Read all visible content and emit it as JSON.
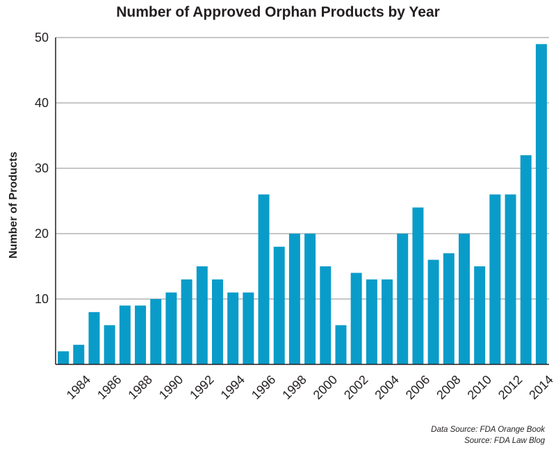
{
  "chart_data": {
    "type": "bar",
    "title": "Number of Approved Orphan Products by Year",
    "xlabel": "",
    "ylabel": "Number of Products",
    "categories": [
      "1983",
      "1984",
      "1985",
      "1986",
      "1987",
      "1988",
      "1989",
      "1990",
      "1991",
      "1992",
      "1993",
      "1994",
      "1995",
      "1996",
      "1997",
      "1998",
      "1999",
      "2000",
      "2001",
      "2002",
      "2003",
      "2004",
      "2005",
      "2006",
      "2007",
      "2008",
      "2009",
      "2010",
      "2011",
      "2012",
      "2013",
      "2014"
    ],
    "x_tick_labels": [
      "1984",
      "1986",
      "1988",
      "1990",
      "1992",
      "1994",
      "1996",
      "1998",
      "2000",
      "2002",
      "2004",
      "2006",
      "2008",
      "2010",
      "2012",
      "2014"
    ],
    "values": [
      2,
      3,
      8,
      6,
      9,
      9,
      10,
      11,
      13,
      15,
      13,
      11,
      11,
      26,
      18,
      20,
      20,
      15,
      6,
      14,
      13,
      13,
      20,
      24,
      16,
      17,
      20,
      15,
      26,
      26,
      32,
      49
    ],
    "ylim": [
      0,
      50
    ],
    "y_ticks": [
      10,
      20,
      30,
      40,
      50
    ],
    "grid": true,
    "bar_color": "#0a9cc9",
    "grid_color": "#8c8c8c",
    "axis_color": "#231f20"
  },
  "footnotes": {
    "data_source": "Data Source: FDA Orange Book",
    "source": "Source: FDA Law Blog"
  }
}
